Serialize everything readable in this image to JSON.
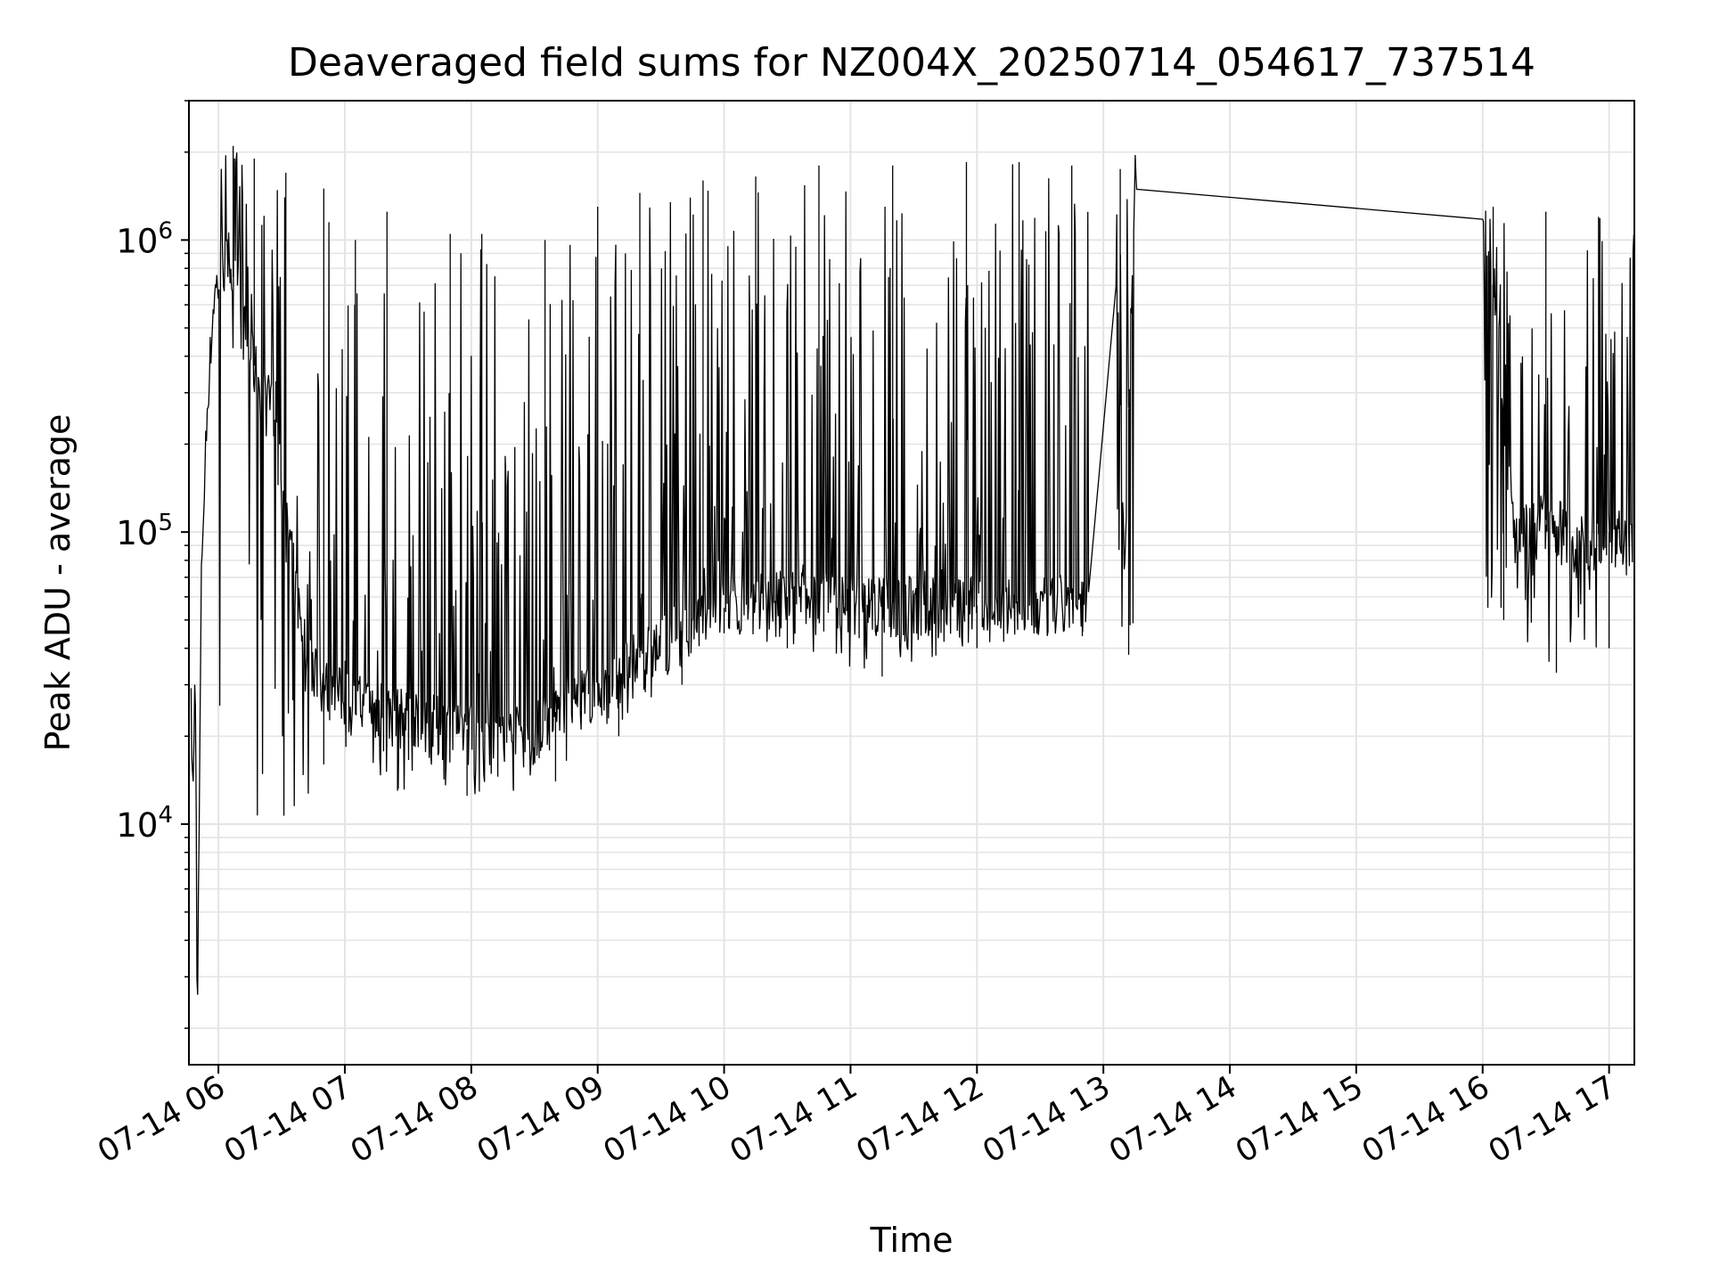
{
  "chart_data": {
    "type": "line",
    "title": "Deaveraged field sums for NZ004X_20250714_054617_737514",
    "xlabel": "Time",
    "ylabel": "Peak ADU - average",
    "yscale": "log",
    "xlim": [
      "2025-07-14 05:46",
      "2025-07-14 17:12"
    ],
    "ylim": [
      1500,
      3000000
    ],
    "grid": true,
    "line_color": "#000000",
    "x_ticks": [
      {
        "value": "2025-07-14 06:00",
        "label": "07-14 06"
      },
      {
        "value": "2025-07-14 07:00",
        "label": "07-14 07"
      },
      {
        "value": "2025-07-14 08:00",
        "label": "07-14 08"
      },
      {
        "value": "2025-07-14 09:00",
        "label": "07-14 09"
      },
      {
        "value": "2025-07-14 10:00",
        "label": "07-14 10"
      },
      {
        "value": "2025-07-14 11:00",
        "label": "07-14 11"
      },
      {
        "value": "2025-07-14 12:00",
        "label": "07-14 12"
      },
      {
        "value": "2025-07-14 13:00",
        "label": "07-14 13"
      },
      {
        "value": "2025-07-14 14:00",
        "label": "07-14 14"
      },
      {
        "value": "2025-07-14 15:00",
        "label": "07-14 15"
      },
      {
        "value": "2025-07-14 16:00",
        "label": "07-14 16"
      },
      {
        "value": "2025-07-14 17:00",
        "label": "07-14 17"
      }
    ],
    "y_ticks": [
      {
        "value": 10000,
        "base": "10",
        "exp": "4"
      },
      {
        "value": 100000,
        "base": "10",
        "exp": "5"
      },
      {
        "value": 1000000,
        "base": "10",
        "exp": "6"
      }
    ],
    "series": [
      {
        "x": [
          "2025-07-14 05:47",
          "2025-07-14 05:48",
          "2025-07-14 05:49",
          "2025-07-14 05:50",
          "2025-07-14 05:52",
          "2025-07-14 05:55",
          "2025-07-14 05:58",
          "2025-07-14 06:02",
          "2025-07-14 06:05",
          "2025-07-14 06:08",
          "2025-07-14 06:12",
          "2025-07-14 06:18",
          "2025-07-14 06:25",
          "2025-07-14 06:30",
          "2025-07-14 06:35",
          "2025-07-14 06:40",
          "2025-07-14 06:50",
          "2025-07-14 07:00",
          "2025-07-14 07:15",
          "2025-07-14 07:30",
          "2025-07-14 07:45",
          "2025-07-14 08:00",
          "2025-07-14 08:15",
          "2025-07-14 08:30",
          "2025-07-14 08:45",
          "2025-07-14 09:00",
          "2025-07-14 09:15",
          "2025-07-14 09:30",
          "2025-07-14 09:45",
          "2025-07-14 10:00",
          "2025-07-14 10:30",
          "2025-07-14 11:00",
          "2025-07-14 11:30",
          "2025-07-14 12:00",
          "2025-07-14 12:30",
          "2025-07-14 12:52",
          "2025-07-14 13:05",
          "2025-07-14 13:10",
          "2025-07-14 13:15",
          "2025-07-14 16:00",
          "2025-07-14 16:15",
          "2025-07-14 16:30",
          "2025-07-14 16:45",
          "2025-07-14 17:00",
          "2025-07-14 17:12"
        ],
        "y": [
          25000,
          12000,
          38000,
          2000,
          80000,
          300000,
          650000,
          800000,
          850000,
          700000,
          500000,
          350000,
          250000,
          150000,
          80000,
          45000,
          30000,
          27000,
          25000,
          23000,
          22000,
          21000,
          20000,
          21000,
          26000,
          30000,
          35000,
          42000,
          48000,
          55000,
          60000,
          58000,
          57000,
          56000,
          56000,
          60000,
          1700000,
          80000,
          1600000,
          1300000,
          100000,
          110000,
          95000,
          100000,
          90000
        ],
        "spikes_high": [
          [
            "2025-07-14 06:07",
            2100000
          ],
          [
            "2025-07-14 06:17",
            1900000
          ],
          [
            "2025-07-14 06:32",
            1700000
          ],
          [
            "2025-07-14 06:50",
            1500000
          ],
          [
            "2025-07-14 07:05",
            1000000
          ],
          [
            "2025-07-14 07:20",
            1250000
          ],
          [
            "2025-07-14 07:50",
            1050000
          ],
          [
            "2025-07-14 08:05",
            1050000
          ],
          [
            "2025-07-14 08:35",
            1000000
          ],
          [
            "2025-07-14 09:00",
            1300000
          ],
          [
            "2025-07-14 09:20",
            1450000
          ],
          [
            "2025-07-14 09:50",
            1600000
          ],
          [
            "2025-07-14 10:15",
            1650000
          ],
          [
            "2025-07-14 10:45",
            1800000
          ],
          [
            "2025-07-14 11:20",
            1800000
          ],
          [
            "2025-07-14 11:55",
            1850000
          ],
          [
            "2025-07-14 12:20",
            1850000
          ],
          [
            "2025-07-14 12:45",
            1800000
          ],
          [
            "2025-07-14 13:08",
            1750000
          ],
          [
            "2025-07-14 16:05",
            1300000
          ],
          [
            "2025-07-14 16:30",
            1250000
          ],
          [
            "2025-07-14 16:55",
            1200000
          ]
        ],
        "floor_low": [
          [
            "2025-07-14 05:50",
            2000
          ],
          [
            "2025-07-14 06:50",
            16000
          ],
          [
            "2025-07-14 07:25",
            13000
          ],
          [
            "2025-07-14 07:58",
            12500
          ],
          [
            "2025-07-14 08:20",
            13000
          ],
          [
            "2025-07-14 08:40",
            14000
          ],
          [
            "2025-07-14 09:10",
            20000
          ],
          [
            "2025-07-14 09:40",
            30000
          ],
          [
            "2025-07-14 10:00",
            45000
          ],
          [
            "2025-07-14 10:30",
            40000
          ],
          [
            "2025-07-14 11:15",
            32000
          ],
          [
            "2025-07-14 12:00",
            40000
          ],
          [
            "2025-07-14 12:50",
            44000
          ],
          [
            "2025-07-14 13:12",
            38000
          ],
          [
            "2025-07-14 16:10",
            50000
          ],
          [
            "2025-07-14 16:35",
            33000
          ],
          [
            "2025-07-14 17:00",
            40000
          ]
        ]
      }
    ]
  }
}
